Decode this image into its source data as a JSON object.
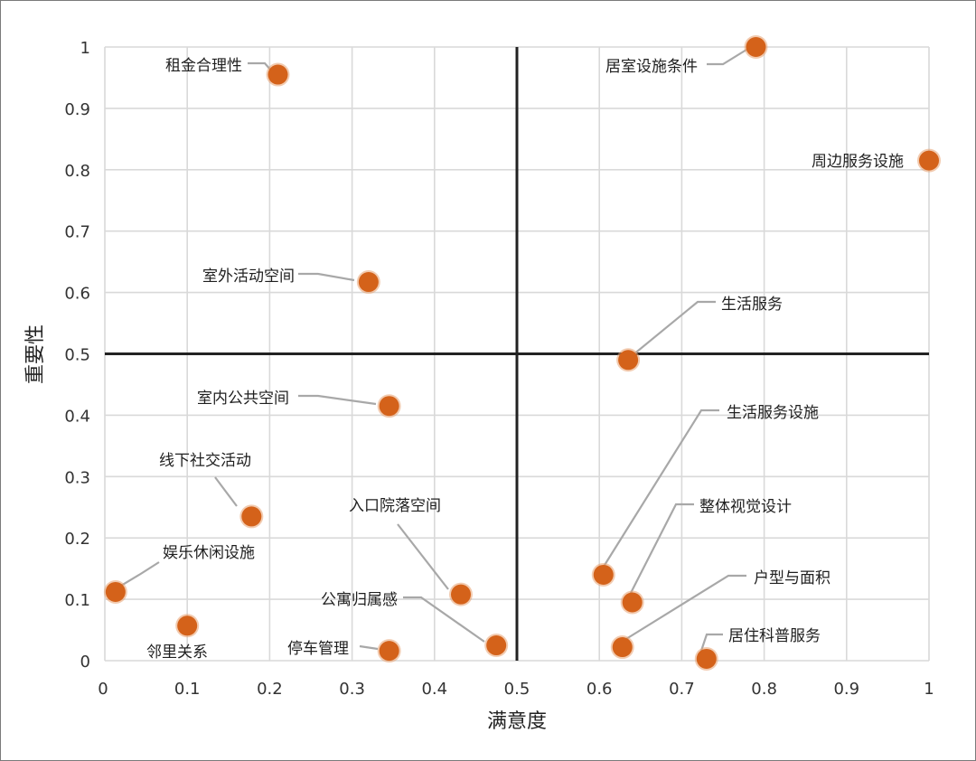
{
  "chart_data": {
    "type": "scatter",
    "xlabel": "满意度",
    "ylabel": "重要性",
    "xlim": [
      0,
      1
    ],
    "ylim": [
      0,
      1
    ],
    "x_ticks": [
      "0",
      "0.1",
      "0.2",
      "0.3",
      "0.4",
      "0.5",
      "0.6",
      "0.7",
      "0.8",
      "0.9",
      "1"
    ],
    "y_ticks": [
      "0",
      "0.1",
      "0.2",
      "0.3",
      "0.4",
      "0.5",
      "0.6",
      "0.7",
      "0.8",
      "0.9",
      "1"
    ],
    "grid": true,
    "quadrant_lines": {
      "x": 0.5,
      "y": 0.5
    },
    "marker_color": "#d4621a",
    "leader_color": "#a8a8a8",
    "points": [
      {
        "label": "租金合理性",
        "x": 0.21,
        "y": 0.955
      },
      {
        "label": "居室设施条件",
        "x": 0.79,
        "y": 1.0
      },
      {
        "label": "周边服务设施",
        "x": 1.0,
        "y": 0.815
      },
      {
        "label": "室外活动空间",
        "x": 0.32,
        "y": 0.617
      },
      {
        "label": "生活服务",
        "x": 0.635,
        "y": 0.49
      },
      {
        "label": "室内公共空间",
        "x": 0.345,
        "y": 0.415
      },
      {
        "label": "生活服务设施",
        "x": 0.605,
        "y": 0.14
      },
      {
        "label": "线下社交活动",
        "x": 0.178,
        "y": 0.235
      },
      {
        "label": "整体视觉设计",
        "x": 0.64,
        "y": 0.095
      },
      {
        "label": "入口院落空间",
        "x": 0.432,
        "y": 0.108
      },
      {
        "label": "娱乐休闲设施",
        "x": 0.013,
        "y": 0.112
      },
      {
        "label": "户型与面积",
        "x": 0.628,
        "y": 0.022
      },
      {
        "label": "公寓归属感",
        "x": 0.475,
        "y": 0.025
      },
      {
        "label": "邻里关系",
        "x": 0.1,
        "y": 0.057
      },
      {
        "label": "停车管理",
        "x": 0.345,
        "y": 0.016
      },
      {
        "label": "居住科普服务",
        "x": 0.73,
        "y": 0.003
      }
    ]
  }
}
